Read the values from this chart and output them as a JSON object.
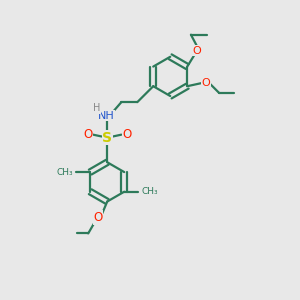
{
  "background_color": "#e8e8e8",
  "bond_color": "#2d7a5a",
  "atom_colors": {
    "O": "#ff2200",
    "N": "#2255cc",
    "S": "#cccc00",
    "H": "#888888"
  },
  "figsize": [
    3.0,
    3.0
  ],
  "dpi": 100,
  "lw": 1.6,
  "ring_r": 0.32,
  "xlim": [
    -0.5,
    2.8
  ],
  "ylim": [
    -2.8,
    2.0
  ]
}
